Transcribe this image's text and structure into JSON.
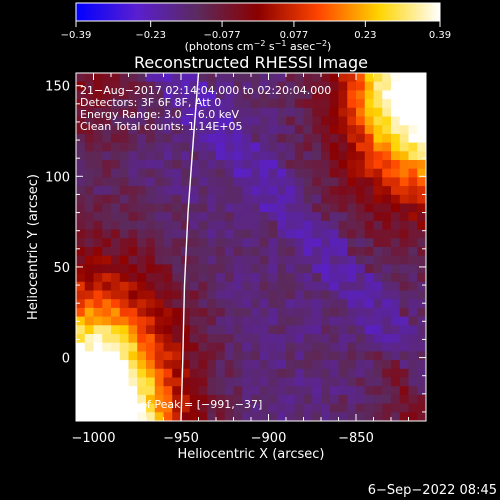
{
  "colorbar": {
    "ticks": [
      -0.39,
      -0.23,
      -0.077,
      0.077,
      0.23,
      0.39
    ],
    "tick_labels": [
      "−0.39",
      "−0.23",
      "−0.077",
      "0.077",
      "0.23",
      "0.39"
    ],
    "unit_main": "(photons cm",
    "unit_sup1": "−2",
    "unit_mid1": " s",
    "unit_sup2": "−1",
    "unit_mid2": " asec",
    "unit_sup3": "−2",
    "unit_end": ")",
    "colors": [
      "#0000ff",
      "#5a1fd0",
      "#5b2a5e",
      "#8b0000",
      "#ff4500",
      "#ffd400",
      "#ffffff"
    ]
  },
  "chart_data": {
    "type": "heatmap",
    "title": "Reconstructed RHESSI Image",
    "xlabel": "Heliocentric X (arcsec)",
    "ylabel": "Heliocentric Y (arcsec)",
    "xlim": [
      -1010,
      -810
    ],
    "ylim": [
      -35,
      157
    ],
    "x_ticks": [
      -1000,
      -950,
      -900,
      -850
    ],
    "x_tick_labels": [
      "−1000",
      "−950",
      "−900",
      "−850"
    ],
    "y_ticks": [
      0,
      50,
      100,
      150
    ],
    "y_tick_labels": [
      "0",
      "50",
      "100",
      "150"
    ],
    "color_range": [
      -0.39,
      0.39
    ],
    "annotations": [
      "21−Aug−2017 02:14:04.000 to 02:20:04.000",
      "Detectors: 3F 6F 8F, Att 0",
      "Energy Range: 3.0 − 6.0 keV",
      "Clean    Total counts: 1.14E+05"
    ],
    "peak_label": "Position of Peak = [−991,−37]",
    "limb_curve": [
      [
        -940,
        157
      ],
      [
        -943,
        120
      ],
      [
        -946,
        80
      ],
      [
        -948,
        40
      ],
      [
        -949,
        0
      ],
      [
        -950,
        -35
      ]
    ]
  },
  "footer": {
    "date": "6−Sep−2022 08:45"
  }
}
